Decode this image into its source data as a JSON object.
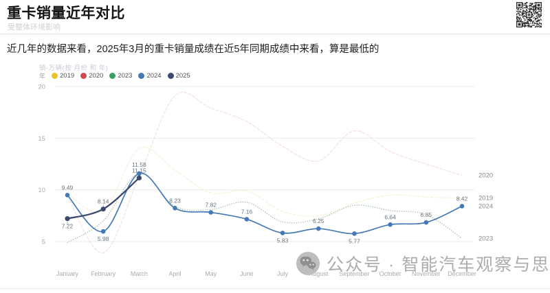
{
  "header": {
    "title": "重卡销量近年对比",
    "subtitle": "受整体环境影响"
  },
  "intro": {
    "text": "近几年的数据来看，2025年3月的重卡销量成绩在近5年同期成绩中来看，算是最低的"
  },
  "chart_data": {
    "type": "line",
    "title": "销-万辆(按 月份 和 年)",
    "legend_title": "年",
    "legend_position": "top-left",
    "grid": true,
    "x_categories": [
      "January",
      "February",
      "March",
      "April",
      "May",
      "June",
      "July",
      "August",
      "September",
      "October",
      "November",
      "December"
    ],
    "y_ticks": [
      5,
      10,
      15,
      20
    ],
    "ylim": [
      3,
      21
    ],
    "series": [
      {
        "name": "2019",
        "color": "#E9C227",
        "line_color": "#EFD9A2",
        "style": "faded-dashed",
        "values": [
          9.6,
          8.0,
          14.0,
          11.9,
          9.7,
          9.9,
          7.9,
          7.5,
          8.7,
          9.5,
          9.3,
          9.2
        ]
      },
      {
        "name": "2020",
        "color": "#CE4A50",
        "line_color": "#E7B3B0",
        "style": "faded-dashed",
        "values": [
          9.4,
          3.9,
          11.3,
          19.1,
          17.9,
          16.6,
          14.2,
          12.8,
          15.7,
          13.7,
          12.5,
          11.4
        ]
      },
      {
        "name": "2023",
        "color": "#36A065",
        "line_color": "#96B8A6",
        "style": "faded-dotted",
        "values": [
          4.9,
          7.0,
          11.6,
          8.4,
          8.1,
          8.8,
          6.9,
          7.2,
          8.5,
          8.0,
          7.6,
          5.3
        ]
      },
      {
        "name": "2024",
        "color": "#4379B7",
        "line_color": "#4379B7",
        "style": "solid",
        "values": [
          9.49,
          5.98,
          11.58,
          8.23,
          7.82,
          7.16,
          5.83,
          6.25,
          5.77,
          6.64,
          6.85,
          8.42
        ],
        "value_labels": [
          "9.49",
          "5.98",
          "11.58",
          "8.23",
          "7.82",
          "7.16",
          "5.83",
          "6.25",
          "5.77",
          "6.64",
          "6.85",
          "8.42"
        ]
      },
      {
        "name": "2025",
        "color": "#3B4A6D",
        "line_color": "#3B4A6D",
        "style": "solid-bold",
        "values": [
          7.22,
          8.14,
          11.15
        ],
        "value_labels": [
          "7.22",
          "8.14",
          "11.15"
        ]
      }
    ],
    "right_edge_labels": [
      "2020",
      "2019",
      "2024",
      "2023"
    ]
  },
  "watermark": {
    "icon": "wechat-icon",
    "text": "公众号 · 智能汽车观察与思考"
  }
}
